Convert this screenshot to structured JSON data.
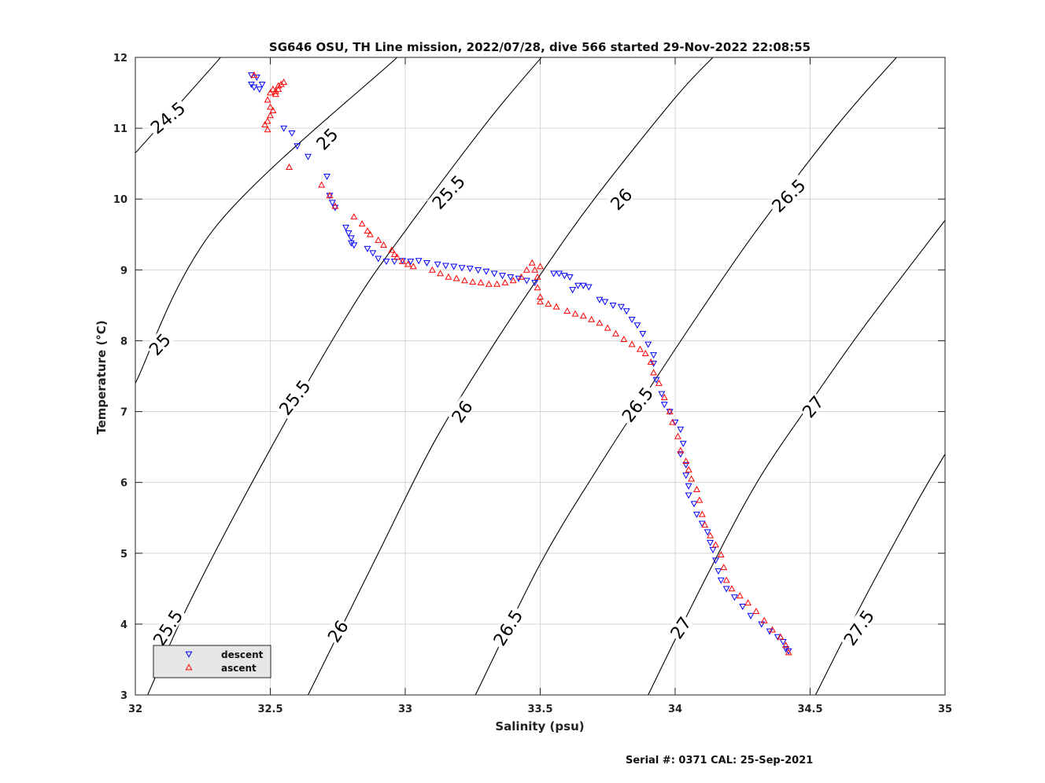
{
  "chart_data": {
    "type": "scatter",
    "title": "SG646 OSU, TH Line mission, 2022/07/28, dive 566 started 29-Nov-2022 22:08:55",
    "xlabel": "Salinity (psu)",
    "ylabel": "Temperature (°C)",
    "xlim": [
      32,
      35
    ],
    "ylim": [
      3,
      12
    ],
    "xticks": [
      "32",
      "32.5",
      "33",
      "33.5",
      "34",
      "34.5",
      "35"
    ],
    "yticks": [
      "3",
      "4",
      "5",
      "6",
      "7",
      "8",
      "9",
      "10",
      "11",
      "12"
    ],
    "grid": true,
    "legend_position": "bottom-left",
    "footer": "Serial #: 0371  CAL: 25-Sep-2021",
    "isopycnals": [
      {
        "label": "24.5",
        "points": [
          [
            32.0,
            10.65
          ],
          [
            32.3,
            11.93
          ],
          [
            32.31,
            12.0
          ]
        ]
      },
      {
        "label": "25",
        "points": [
          [
            32.0,
            7.4
          ],
          [
            32.3,
            9.62
          ],
          [
            32.97,
            12.0
          ]
        ]
      },
      {
        "label": "25.5",
        "points": [
          [
            32.0,
            2.6
          ],
          [
            32.2,
            4.3
          ],
          [
            32.5,
            6.47
          ],
          [
            32.8,
            8.45
          ],
          [
            33.0,
            9.55
          ],
          [
            33.3,
            11.07
          ],
          [
            33.5,
            11.98
          ],
          [
            33.51,
            12.0
          ]
        ]
      },
      {
        "label": "26",
        "points": [
          [
            32.64,
            3.0
          ],
          [
            32.9,
            5.0
          ],
          [
            33.1,
            6.52
          ],
          [
            33.3,
            7.78
          ],
          [
            33.5,
            8.93
          ],
          [
            33.7,
            10.0
          ],
          [
            34.0,
            11.43
          ],
          [
            34.14,
            12.0
          ]
        ]
      },
      {
        "label": "26.5",
        "points": [
          [
            33.26,
            3.0
          ],
          [
            33.5,
            4.85
          ],
          [
            33.7,
            6.12
          ],
          [
            33.9,
            7.3
          ],
          [
            34.1,
            8.45
          ],
          [
            34.3,
            9.55
          ],
          [
            34.6,
            11.04
          ],
          [
            34.82,
            12.0
          ]
        ]
      },
      {
        "label": "27",
        "points": [
          [
            33.9,
            3.0
          ],
          [
            34.1,
            4.55
          ],
          [
            34.3,
            5.98
          ],
          [
            34.5,
            7.12
          ],
          [
            34.7,
            8.2
          ],
          [
            35.0,
            9.7
          ]
        ]
      },
      {
        "label": "27.5",
        "points": [
          [
            34.52,
            3.0
          ],
          [
            34.7,
            4.35
          ],
          [
            34.9,
            5.75
          ],
          [
            35.0,
            6.4
          ]
        ]
      }
    ],
    "contour_labels": [
      {
        "text": "24.5",
        "x": 32.12,
        "y": 11.15,
        "angle": -40
      },
      {
        "text": "25",
        "x": 32.71,
        "y": 10.85,
        "angle": -46
      },
      {
        "text": "25.5",
        "x": 33.16,
        "y": 10.1,
        "angle": -47
      },
      {
        "text": "26",
        "x": 33.8,
        "y": 10.0,
        "angle": -45
      },
      {
        "text": "26.5",
        "x": 34.42,
        "y": 10.05,
        "angle": -44
      },
      {
        "text": "25",
        "x": 32.09,
        "y": 7.95,
        "angle": -48
      },
      {
        "text": "25.5",
        "x": 32.59,
        "y": 7.2,
        "angle": -52
      },
      {
        "text": "26",
        "x": 33.21,
        "y": 7.0,
        "angle": -55
      },
      {
        "text": "26.5",
        "x": 33.86,
        "y": 7.1,
        "angle": -52
      },
      {
        "text": "27",
        "x": 34.51,
        "y": 7.07,
        "angle": -50
      },
      {
        "text": "25.5",
        "x": 32.12,
        "y": 3.95,
        "angle": -57
      },
      {
        "text": "26",
        "x": 32.75,
        "y": 3.9,
        "angle": -57
      },
      {
        "text": "26.5",
        "x": 33.38,
        "y": 3.95,
        "angle": -58
      },
      {
        "text": "27",
        "x": 34.02,
        "y": 3.95,
        "angle": -56
      },
      {
        "text": "27.5",
        "x": 34.68,
        "y": 3.95,
        "angle": -55
      }
    ],
    "series": [
      {
        "name": "descent",
        "color": "#0000ff",
        "marker": "triangle-down",
        "points": [
          [
            32.43,
            11.75
          ],
          [
            32.45,
            11.72
          ],
          [
            32.43,
            11.62
          ],
          [
            32.44,
            11.58
          ],
          [
            32.47,
            11.62
          ],
          [
            32.46,
            11.55
          ],
          [
            32.55,
            11.0
          ],
          [
            32.58,
            10.93
          ],
          [
            32.6,
            10.75
          ],
          [
            32.64,
            10.6
          ],
          [
            32.71,
            10.32
          ],
          [
            32.72,
            10.05
          ],
          [
            32.73,
            9.95
          ],
          [
            32.74,
            9.88
          ],
          [
            32.78,
            9.6
          ],
          [
            32.79,
            9.52
          ],
          [
            32.8,
            9.45
          ],
          [
            32.81,
            9.35
          ],
          [
            32.8,
            9.38
          ],
          [
            32.86,
            9.3
          ],
          [
            32.88,
            9.24
          ],
          [
            32.9,
            9.16
          ],
          [
            32.93,
            9.12
          ],
          [
            32.96,
            9.12
          ],
          [
            32.99,
            9.13
          ],
          [
            33.02,
            9.12
          ],
          [
            33.05,
            9.13
          ],
          [
            33.08,
            9.1
          ],
          [
            33.12,
            9.08
          ],
          [
            33.15,
            9.06
          ],
          [
            33.18,
            9.05
          ],
          [
            33.21,
            9.03
          ],
          [
            33.24,
            9.02
          ],
          [
            33.27,
            9.0
          ],
          [
            33.3,
            8.98
          ],
          [
            33.33,
            8.95
          ],
          [
            33.36,
            8.92
          ],
          [
            33.39,
            8.9
          ],
          [
            33.42,
            8.88
          ],
          [
            33.45,
            8.85
          ],
          [
            33.48,
            8.82
          ],
          [
            33.55,
            8.95
          ],
          [
            33.57,
            8.95
          ],
          [
            33.59,
            8.92
          ],
          [
            33.61,
            8.9
          ],
          [
            33.62,
            8.72
          ],
          [
            33.64,
            8.78
          ],
          [
            33.66,
            8.78
          ],
          [
            33.68,
            8.76
          ],
          [
            33.72,
            8.58
          ],
          [
            33.74,
            8.55
          ],
          [
            33.77,
            8.5
          ],
          [
            33.8,
            8.48
          ],
          [
            33.82,
            8.42
          ],
          [
            33.84,
            8.3
          ],
          [
            33.86,
            8.22
          ],
          [
            33.88,
            8.1
          ],
          [
            33.9,
            7.95
          ],
          [
            33.92,
            7.8
          ],
          [
            33.92,
            7.68
          ],
          [
            33.93,
            7.45
          ],
          [
            33.95,
            7.25
          ],
          [
            33.96,
            7.1
          ],
          [
            33.98,
            7.0
          ],
          [
            34.0,
            6.85
          ],
          [
            34.02,
            6.75
          ],
          [
            34.03,
            6.55
          ],
          [
            34.02,
            6.4
          ],
          [
            34.04,
            6.25
          ],
          [
            34.04,
            6.1
          ],
          [
            34.05,
            5.95
          ],
          [
            34.05,
            5.82
          ],
          [
            34.07,
            5.7
          ],
          [
            34.08,
            5.55
          ],
          [
            34.1,
            5.42
          ],
          [
            34.12,
            5.3
          ],
          [
            34.13,
            5.15
          ],
          [
            34.14,
            5.05
          ],
          [
            34.15,
            4.9
          ],
          [
            34.16,
            4.75
          ],
          [
            34.17,
            4.62
          ],
          [
            34.19,
            4.5
          ],
          [
            34.22,
            4.38
          ],
          [
            34.25,
            4.25
          ],
          [
            34.28,
            4.12
          ],
          [
            34.32,
            4.0
          ],
          [
            34.35,
            3.9
          ],
          [
            34.38,
            3.82
          ],
          [
            34.4,
            3.75
          ],
          [
            34.41,
            3.65
          ],
          [
            34.42,
            3.62
          ]
        ]
      },
      {
        "name": "ascent",
        "color": "#ff0000",
        "marker": "triangle-up",
        "points": [
          [
            32.44,
            11.75
          ],
          [
            32.5,
            11.5
          ],
          [
            32.51,
            11.55
          ],
          [
            32.52,
            11.52
          ],
          [
            32.53,
            11.6
          ],
          [
            32.54,
            11.62
          ],
          [
            32.55,
            11.65
          ],
          [
            32.53,
            11.55
          ],
          [
            32.52,
            11.48
          ],
          [
            32.49,
            11.4
          ],
          [
            32.5,
            11.3
          ],
          [
            32.51,
            11.25
          ],
          [
            32.5,
            11.18
          ],
          [
            32.49,
            11.1
          ],
          [
            32.48,
            11.05
          ],
          [
            32.49,
            10.98
          ],
          [
            32.57,
            10.45
          ],
          [
            32.69,
            10.2
          ],
          [
            32.72,
            10.05
          ],
          [
            32.74,
            9.9
          ],
          [
            32.81,
            9.75
          ],
          [
            32.84,
            9.65
          ],
          [
            32.86,
            9.55
          ],
          [
            32.87,
            9.5
          ],
          [
            32.9,
            9.42
          ],
          [
            32.92,
            9.35
          ],
          [
            32.95,
            9.28
          ],
          [
            32.96,
            9.22
          ],
          [
            32.97,
            9.18
          ],
          [
            32.99,
            9.12
          ],
          [
            33.01,
            9.08
          ],
          [
            33.03,
            9.05
          ],
          [
            33.1,
            9.0
          ],
          [
            33.13,
            8.95
          ],
          [
            33.16,
            8.9
          ],
          [
            33.19,
            8.88
          ],
          [
            33.22,
            8.85
          ],
          [
            33.25,
            8.83
          ],
          [
            33.28,
            8.82
          ],
          [
            33.31,
            8.8
          ],
          [
            33.34,
            8.8
          ],
          [
            33.37,
            8.82
          ],
          [
            33.4,
            8.85
          ],
          [
            33.43,
            8.9
          ],
          [
            33.45,
            9.0
          ],
          [
            33.47,
            9.1
          ],
          [
            33.48,
            9.0
          ],
          [
            33.49,
            8.9
          ],
          [
            33.5,
            9.05
          ],
          [
            33.49,
            8.75
          ],
          [
            33.5,
            8.62
          ],
          [
            33.5,
            8.55
          ],
          [
            33.53,
            8.52
          ],
          [
            33.56,
            8.48
          ],
          [
            33.6,
            8.42
          ],
          [
            33.63,
            8.38
          ],
          [
            33.66,
            8.35
          ],
          [
            33.69,
            8.3
          ],
          [
            33.72,
            8.25
          ],
          [
            33.75,
            8.18
          ],
          [
            33.78,
            8.1
          ],
          [
            33.81,
            8.02
          ],
          [
            33.84,
            7.95
          ],
          [
            33.87,
            7.88
          ],
          [
            33.89,
            7.82
          ],
          [
            33.91,
            7.7
          ],
          [
            33.92,
            7.55
          ],
          [
            33.94,
            7.4
          ],
          [
            33.96,
            7.2
          ],
          [
            33.98,
            7.0
          ],
          [
            33.99,
            6.85
          ],
          [
            34.01,
            6.65
          ],
          [
            34.02,
            6.45
          ],
          [
            34.04,
            6.3
          ],
          [
            34.05,
            6.18
          ],
          [
            34.06,
            6.05
          ],
          [
            34.08,
            5.9
          ],
          [
            34.09,
            5.75
          ],
          [
            34.1,
            5.55
          ],
          [
            34.11,
            5.4
          ],
          [
            34.13,
            5.25
          ],
          [
            34.15,
            5.12
          ],
          [
            34.17,
            4.98
          ],
          [
            34.18,
            4.8
          ],
          [
            34.19,
            4.62
          ],
          [
            34.21,
            4.5
          ],
          [
            34.24,
            4.4
          ],
          [
            34.27,
            4.3
          ],
          [
            34.3,
            4.18
          ],
          [
            34.33,
            4.05
          ],
          [
            34.36,
            3.92
          ],
          [
            34.39,
            3.82
          ],
          [
            34.41,
            3.7
          ],
          [
            34.42,
            3.6
          ]
        ]
      }
    ]
  }
}
